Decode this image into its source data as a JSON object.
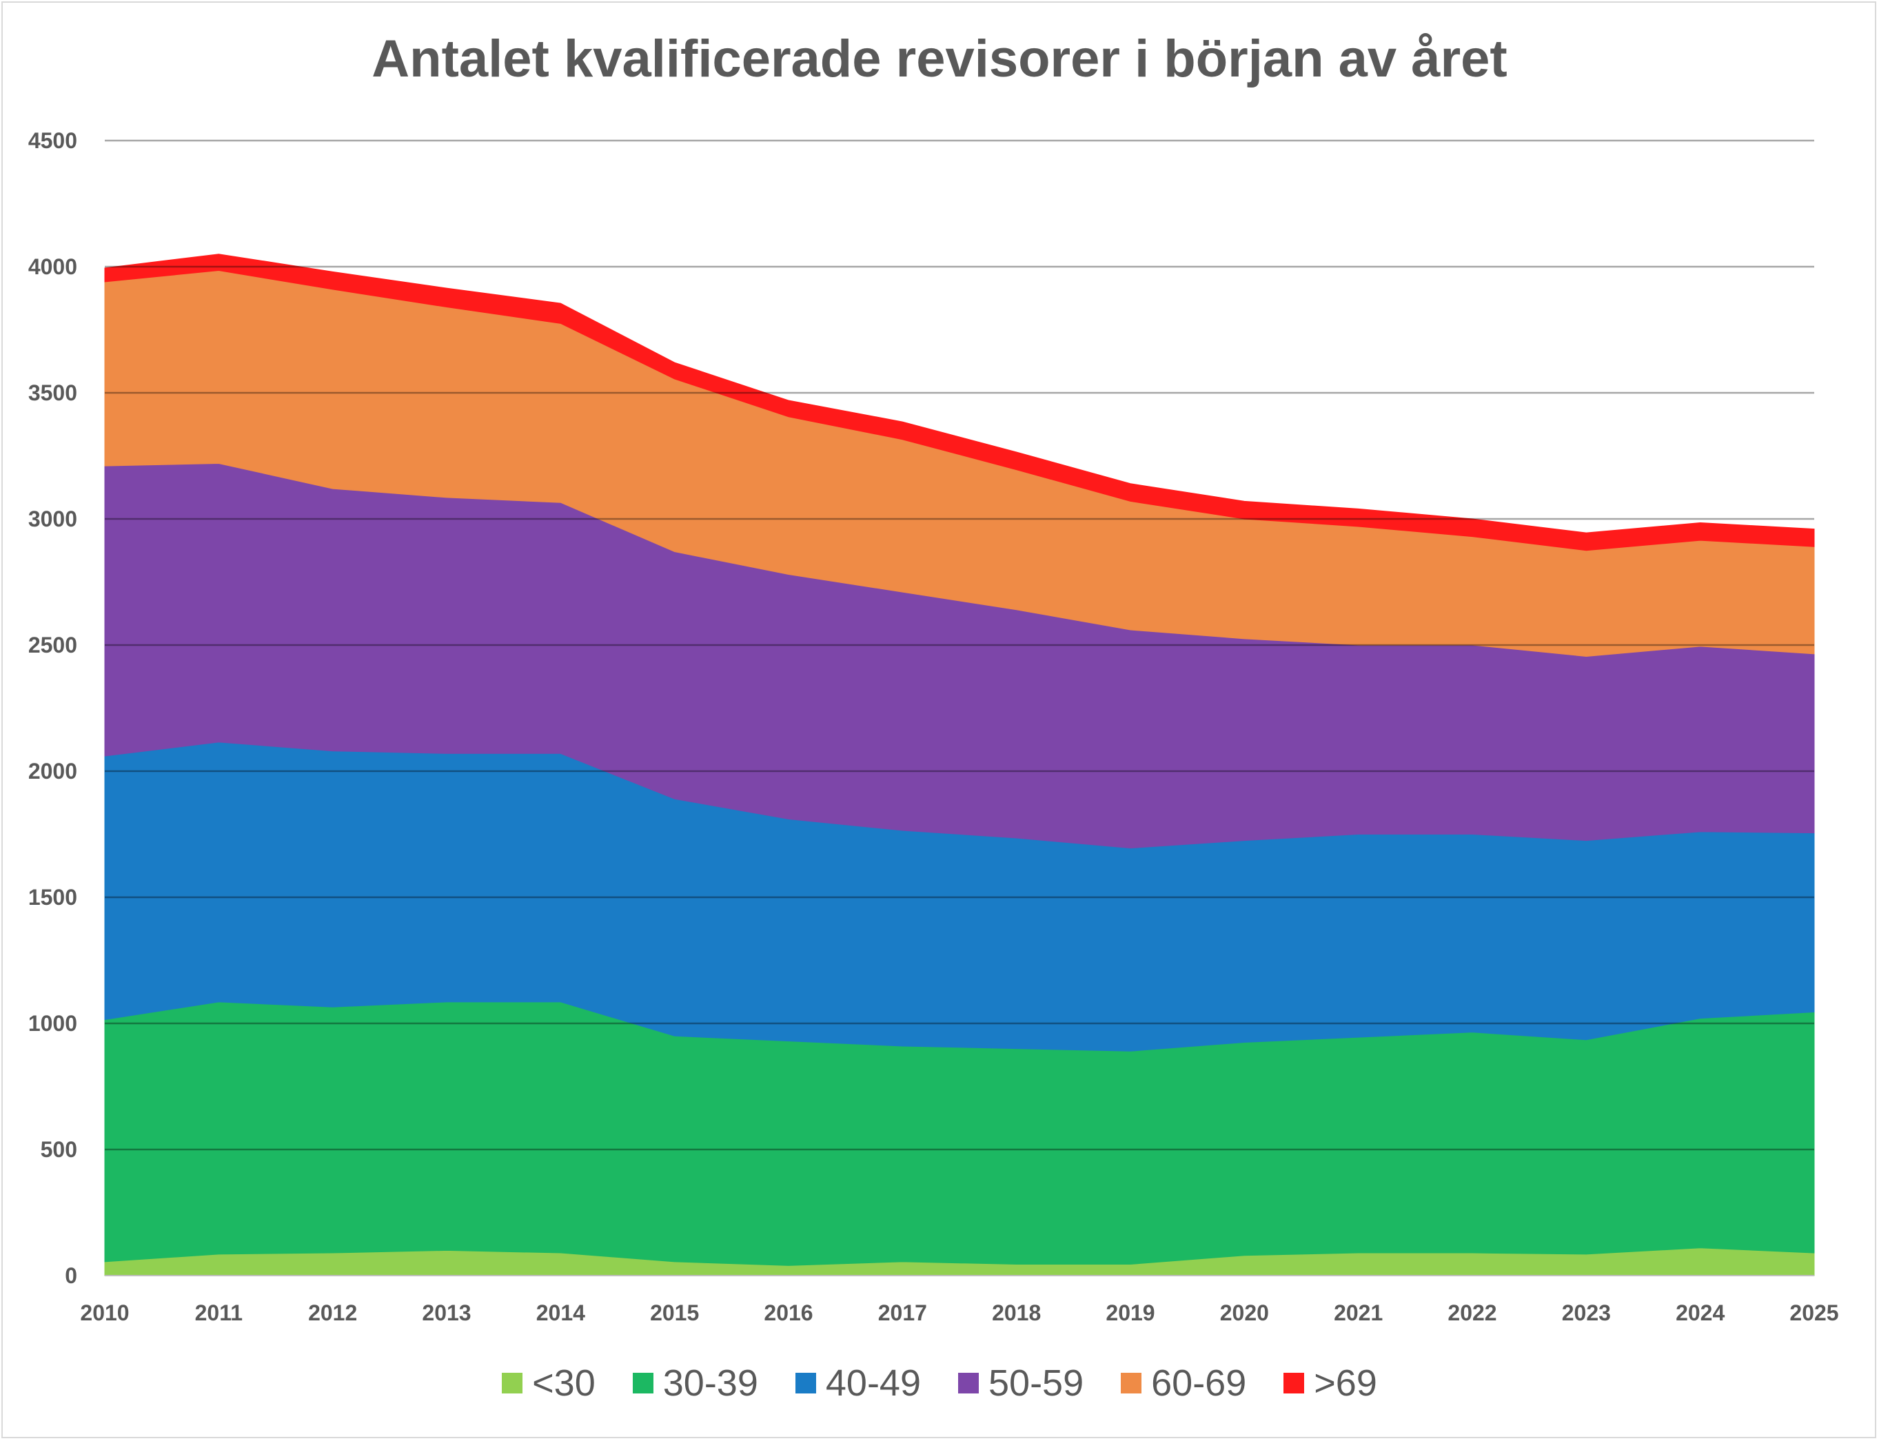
{
  "chart_data": {
    "type": "area",
    "stacked": true,
    "title": "Antalet kvalificerade revisorer i början av året",
    "xlabel": "",
    "ylabel": "",
    "ylim": [
      0,
      4500
    ],
    "yticks": [
      0,
      500,
      1000,
      1500,
      2000,
      2500,
      3000,
      3500,
      4000,
      4500
    ],
    "x": [
      "2010",
      "2011",
      "2012",
      "2013",
      "2014",
      "2015",
      "2016",
      "2017",
      "2018",
      "2019",
      "2020",
      "2021",
      "2022",
      "2023",
      "2024",
      "2025"
    ],
    "grid": true,
    "legend_position": "bottom",
    "series": [
      {
        "name": "<30",
        "color": "#92d050",
        "values": [
          55,
          85,
          90,
          100,
          90,
          55,
          40,
          55,
          45,
          45,
          80,
          90,
          90,
          85,
          110,
          90
        ]
      },
      {
        "name": "30-39",
        "color": "#1cb862",
        "values": [
          960,
          1000,
          975,
          985,
          995,
          895,
          890,
          855,
          855,
          845,
          845,
          855,
          875,
          850,
          910,
          955
        ]
      },
      {
        "name": "40-49",
        "color": "#1a7cc6",
        "values": [
          1045,
          1030,
          1015,
          985,
          985,
          940,
          880,
          855,
          835,
          805,
          800,
          805,
          785,
          790,
          740,
          710
        ]
      },
      {
        "name": "50-59",
        "color": "#7d46a9",
        "values": [
          1150,
          1105,
          1040,
          1015,
          995,
          980,
          970,
          945,
          905,
          865,
          800,
          750,
          750,
          730,
          735,
          710
        ]
      },
      {
        "name": "60-69",
        "color": "#ef8b46",
        "values": [
          730,
          765,
          790,
          755,
          710,
          685,
          625,
          605,
          555,
          510,
          475,
          470,
          430,
          420,
          420,
          425
        ]
      },
      {
        "name": ">69",
        "color": "#ff1a1a",
        "values": [
          55,
          65,
          70,
          75,
          80,
          65,
          65,
          70,
          70,
          70,
          70,
          70,
          70,
          70,
          70,
          70
        ]
      }
    ]
  }
}
